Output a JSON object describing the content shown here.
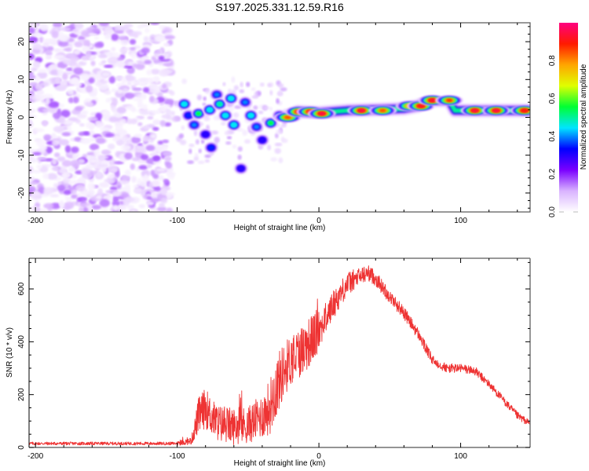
{
  "figure_title": "S197.2025.331.12.59.R16",
  "chart_data": [
    {
      "type": "heatmap",
      "name": "spectrogram",
      "title": "",
      "xlabel": "Height of straight line (km)",
      "ylabel": "Frequency (Hz)",
      "xlim": [
        -204.5,
        149
      ],
      "ylim": [
        -25,
        25
      ],
      "xticks": [
        -200,
        -100,
        0,
        100
      ],
      "xtick_labels": [
        "-200",
        "-100",
        "0",
        "100"
      ],
      "yticks": [
        -20,
        -10,
        0,
        10,
        20
      ],
      "ytick_labels": [
        "-20",
        "-10",
        "0",
        "10",
        "20"
      ],
      "grid": false,
      "description": "Noise (low amplitude scattered purple blobs) over -204 to -105 km across full frequency band; energetic blobs from -100 to -20 km fanning out between about -15 and 8 Hz; continuous narrow band near 1-3 Hz from -20 to 149 km with high amplitude (0.8-1.0) patches.",
      "features": [
        {
          "x": -95,
          "f": 3.5,
          "amp": 0.45
        },
        {
          "x": -92,
          "f": 0.5,
          "amp": 0.35
        },
        {
          "x": -88,
          "f": -2,
          "amp": 0.4
        },
        {
          "x": -85,
          "f": 1.0,
          "amp": 0.55
        },
        {
          "x": -80,
          "f": -4.5,
          "amp": 0.3
        },
        {
          "x": -77,
          "f": 2.0,
          "amp": 0.45
        },
        {
          "x": -76,
          "f": -8,
          "amp": 0.35
        },
        {
          "x": -72,
          "f": 6,
          "amp": 0.4
        },
        {
          "x": -70,
          "f": 3.5,
          "amp": 0.5
        },
        {
          "x": -66,
          "f": 0.5,
          "amp": 0.45
        },
        {
          "x": -62,
          "f": 5.0,
          "amp": 0.45
        },
        {
          "x": -60,
          "f": -2,
          "amp": 0.45
        },
        {
          "x": -55,
          "f": -13.5,
          "amp": 0.3
        },
        {
          "x": -52,
          "f": 4,
          "amp": 0.4
        },
        {
          "x": -48,
          "f": 0.5,
          "amp": 0.45
        },
        {
          "x": -44,
          "f": -2.5,
          "amp": 0.4
        },
        {
          "x": -40,
          "f": -6,
          "amp": 0.3
        },
        {
          "x": -34,
          "f": -1.5,
          "amp": 0.55
        },
        {
          "x": -28,
          "f": 0.5,
          "amp": 0.4
        },
        {
          "x": -22,
          "f": 0.0,
          "amp": 0.85
        },
        {
          "x": -14,
          "f": 1.5,
          "amp": 0.9
        },
        {
          "x": -6,
          "f": 1.5,
          "amp": 0.9
        },
        {
          "x": 2,
          "f": 1.0,
          "amp": 0.95
        },
        {
          "x": 30,
          "f": 1.8,
          "amp": 0.95
        },
        {
          "x": 45,
          "f": 1.8,
          "amp": 0.85
        },
        {
          "x": 64,
          "f": 3.0,
          "amp": 0.8
        },
        {
          "x": 72,
          "f": 3.0,
          "amp": 0.92
        },
        {
          "x": 80,
          "f": 4.5,
          "amp": 0.93
        },
        {
          "x": 92,
          "f": 4.5,
          "amp": 0.88
        },
        {
          "x": 110,
          "f": 1.8,
          "amp": 0.95
        },
        {
          "x": 125,
          "f": 1.8,
          "amp": 0.95
        },
        {
          "x": 145,
          "f": 1.8,
          "amp": 0.9
        }
      ],
      "colorbar": {
        "label": "Normalized spectral amplitude",
        "range": [
          0.0,
          1.0
        ],
        "ticks": [
          0.0,
          0.2,
          0.4,
          0.6,
          0.8
        ],
        "tick_labels": [
          "0.0",
          "0.2",
          "0.4",
          "0.6",
          "0.8"
        ],
        "colormap": [
          "#ffffff",
          "#d9b3ff",
          "#7a00ff",
          "#0000ff",
          "#00e5ff",
          "#00ff33",
          "#e0ff00",
          "#ffa500",
          "#ff1a00",
          "#ff0080"
        ]
      }
    },
    {
      "type": "line",
      "name": "snr",
      "title": "",
      "xlabel": "Height of straight line (km)",
      "ylabel": "SNR (10 * v/v)",
      "xlim": [
        -204.5,
        149
      ],
      "ylim": [
        0,
        716
      ],
      "xticks": [
        -200,
        -100,
        0,
        100
      ],
      "xtick_labels": [
        "-200",
        "-100",
        "0",
        "100"
      ],
      "yticks": [
        0,
        200,
        400,
        600
      ],
      "ytick_labels": [
        "0",
        "200",
        "400",
        "600"
      ],
      "grid": false,
      "color": "#ee3333",
      "series": [
        {
          "name": "SNR",
          "envelope_x": [
            -204.5,
            -180,
            -150,
            -120,
            -100,
            -90,
            -85,
            -80,
            -75,
            -70,
            -60,
            -50,
            -40,
            -35,
            -30,
            -25,
            -20,
            -10,
            0,
            10,
            20,
            30,
            35,
            40,
            50,
            60,
            70,
            80,
            90,
            100,
            110,
            120,
            130,
            140,
            149
          ],
          "envelope_mean": [
            15,
            15,
            15,
            15,
            15,
            25,
            120,
            150,
            110,
            90,
            80,
            85,
            120,
            150,
            230,
            290,
            330,
            380,
            440,
            540,
            620,
            650,
            660,
            640,
            570,
            510,
            430,
            330,
            300,
            300,
            290,
            240,
            180,
            120,
            90
          ],
          "envelope_noise": [
            12,
            12,
            12,
            12,
            12,
            20,
            100,
            110,
            100,
            100,
            100,
            100,
            120,
            150,
            170,
            150,
            140,
            140,
            130,
            110,
            90,
            70,
            60,
            60,
            50,
            50,
            45,
            40,
            35,
            35,
            35,
            30,
            30,
            30,
            25
          ]
        }
      ]
    }
  ]
}
